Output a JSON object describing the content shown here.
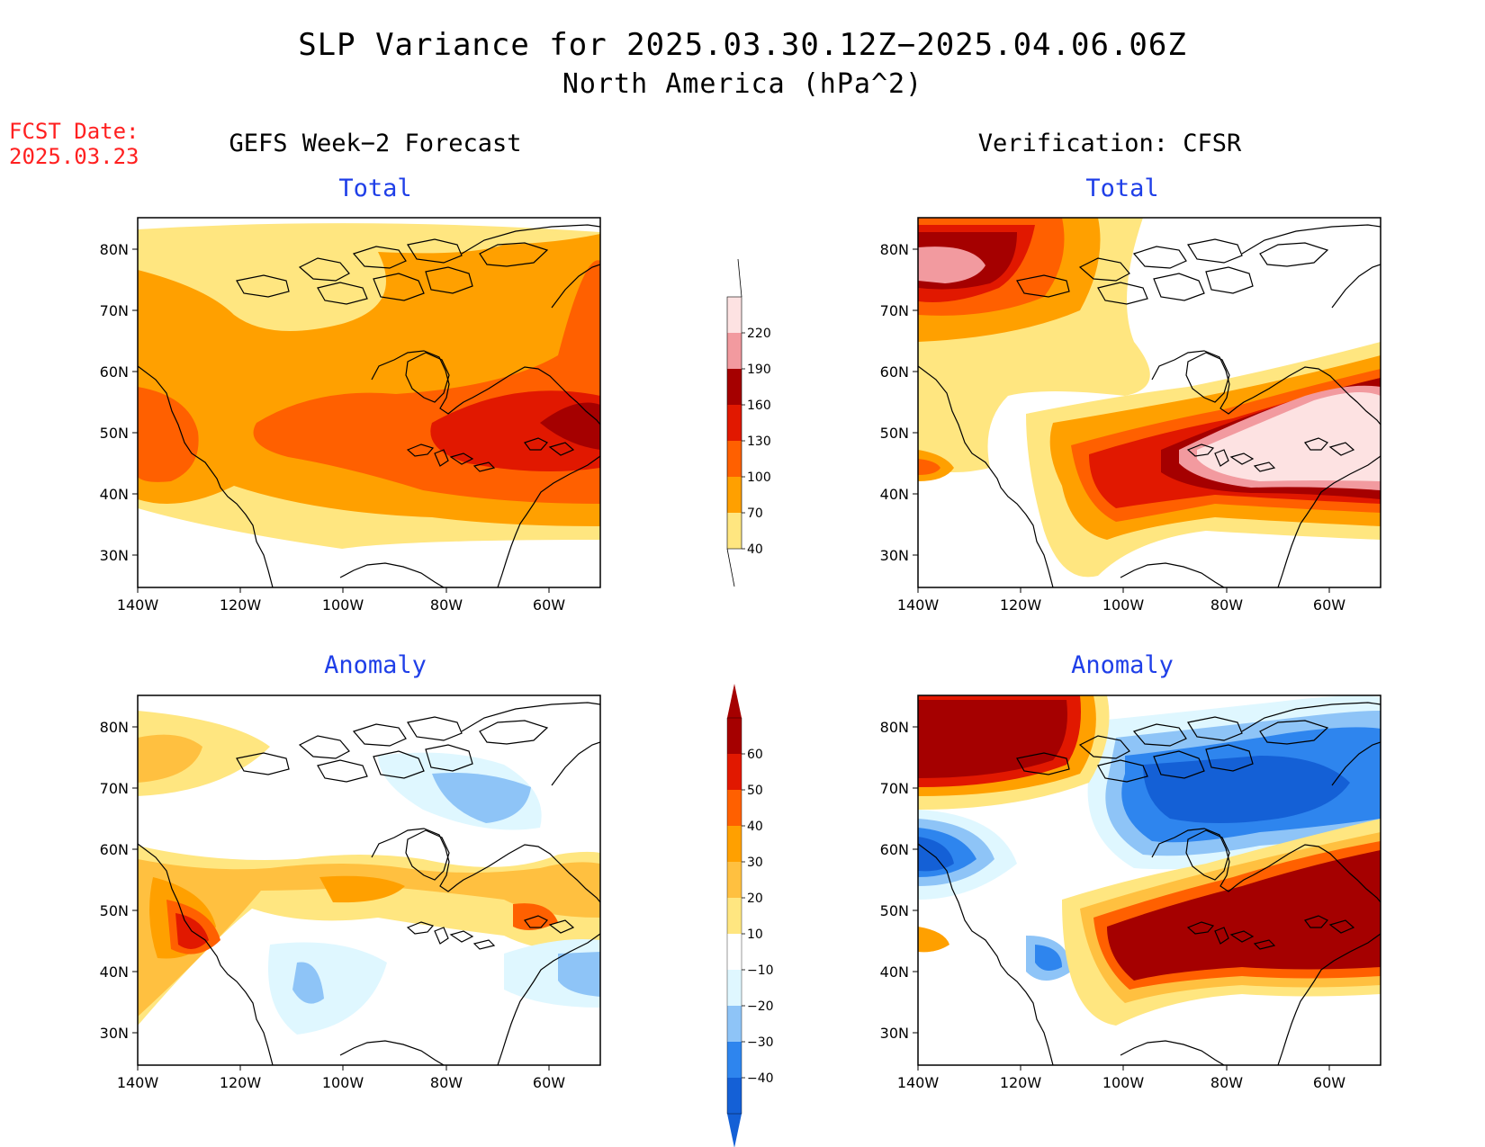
{
  "header": {
    "title": "SLP Variance for 2025.03.30.12Z−2025.04.06.06Z",
    "subtitle": "North America (hPa^2)",
    "fcst_label": "FCST Date:",
    "fcst_date": "2025.03.23"
  },
  "columns": {
    "left": "GEFS Week−2 Forecast",
    "right": "Verification: CFSR"
  },
  "panels": {
    "fcst_total": "Total",
    "ver_total": "Total",
    "fcst_anom": "Anomaly",
    "ver_anom": "Anomaly"
  },
  "axes": {
    "lat_labels": [
      "80N",
      "70N",
      "60N",
      "50N",
      "40N",
      "30N"
    ],
    "lon_labels": [
      "140W",
      "120W",
      "100W",
      "80W",
      "60W"
    ]
  },
  "colorbars": {
    "total": {
      "levels": [
        "40",
        "70",
        "100",
        "130",
        "160",
        "190",
        "220"
      ],
      "colors": [
        "#ffe680",
        "#ffa000",
        "#ff6000",
        "#e11800",
        "#a50000",
        "#f29a9f",
        "#fde2e2"
      ]
    },
    "anomaly": {
      "levels": [
        "−40",
        "−30",
        "−20",
        "−10",
        "10",
        "20",
        "30",
        "40",
        "50",
        "60"
      ],
      "colors": [
        "#1460d6",
        "#2e85ee",
        "#8ec4f7",
        "#dff7ff",
        "#ffffff",
        "#ffe680",
        "#ffc040",
        "#ffa000",
        "#ff6000",
        "#e11800",
        "#a50000"
      ]
    }
  }
}
